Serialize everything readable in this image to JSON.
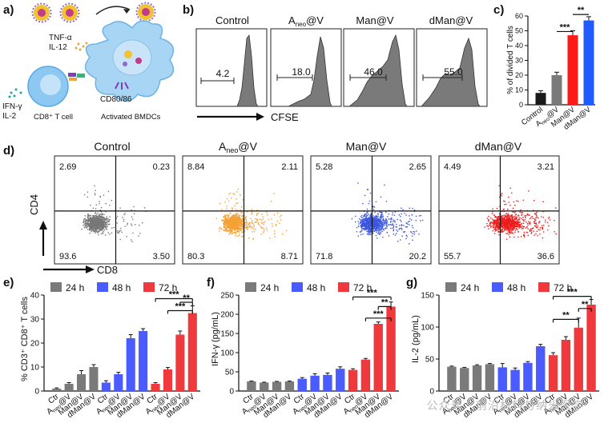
{
  "panels": {
    "a": {
      "label": "a)",
      "cytokines": [
        "TNF-α",
        "IL-12"
      ],
      "tcell_cytokines": [
        "IFN-γ",
        "IL-2"
      ],
      "cd80_label": "CD80/86",
      "tcell_label": "CD8⁺ T cell",
      "bmdc_label": "Activated BMDCs"
    },
    "b": {
      "label": "b)",
      "titles": [
        "Control",
        "A",
        "Man@V",
        "dMan@V"
      ],
      "title_sub": "neo",
      "title_suffix": "@V",
      "gate_values": [
        "4.2",
        "18.0",
        "46.0",
        "55.0"
      ],
      "xlabel": "CFSE"
    },
    "d": {
      "label": "d)",
      "titles": [
        "Control",
        "A",
        "Man@V",
        "dMan@V"
      ],
      "title_sub": "neo",
      "title_suffix": "@V",
      "quadrants": [
        [
          "2.69",
          "0.23",
          "93.6",
          "3.50"
        ],
        [
          "8.84",
          "2.11",
          "80.3",
          "8.71"
        ],
        [
          "5.28",
          "2.65",
          "71.8",
          "20.2"
        ],
        [
          "4.49",
          "3.21",
          "55.7",
          "36.6"
        ]
      ],
      "ylabel": "CD4",
      "xlabel": "CD8",
      "colors": [
        "#777777",
        "#f5a033",
        "#3a55e0",
        "#ee1c1c"
      ]
    },
    "watermark": "公众号 · 前沿材料与纳米医学"
  },
  "colors": {
    "gray": "#7a7a7a",
    "blue": "#4a5bff",
    "red": "#f0393d",
    "pure_red": "#ff1a1a",
    "pure_blue": "#1f5bff",
    "dark": "#1a1a1a"
  },
  "chart_data": [
    {
      "id": "c",
      "label": "c)",
      "type": "bar",
      "categories": [
        "Control",
        "Aneo@V",
        "Man@V",
        "dMan@V"
      ],
      "values": [
        8,
        20,
        47,
        57
      ],
      "errors": [
        1.5,
        2,
        3,
        2.5
      ],
      "ylabel": "% of divided T cells",
      "ylim": [
        0,
        60
      ],
      "yticks": [
        "0",
        "10",
        "20",
        "30",
        "40",
        "50",
        "60"
      ],
      "significance": [
        "***",
        "**"
      ]
    },
    {
      "id": "e",
      "label": "e)",
      "type": "bar",
      "ylabel": "% CD3⁺ CD8⁺ T cells",
      "ylim": [
        0,
        40
      ],
      "yticks": [
        "0",
        "10",
        "20",
        "30",
        "40"
      ],
      "legend": [
        "24 h",
        "48 h",
        "72 h"
      ],
      "categories": [
        "Ctr",
        "Aneo@V",
        "Man@V",
        "dMan@V"
      ],
      "series": [
        {
          "name": "24 h",
          "values": [
            1,
            3,
            7,
            10
          ],
          "errors": [
            0.3,
            0.5,
            1.5,
            1
          ]
        },
        {
          "name": "48 h",
          "values": [
            3.5,
            7,
            22,
            25
          ],
          "errors": [
            0.8,
            0.8,
            1.5,
            1
          ]
        },
        {
          "name": "72 h",
          "values": [
            3,
            9,
            23.5,
            32.5
          ],
          "errors": [
            0.5,
            0.8,
            1.5,
            3
          ]
        }
      ],
      "significance": [
        "***",
        "***",
        "**"
      ]
    },
    {
      "id": "f",
      "label": "f)",
      "type": "bar",
      "ylabel": "IFN-γ (pg/mL)",
      "ylim": [
        0,
        250
      ],
      "yticks": [
        "0",
        "50",
        "100",
        "150",
        "200",
        "250"
      ],
      "legend": [
        "24 h",
        "48 h",
        "72 h"
      ],
      "categories": [
        "Ctr",
        "Aneo@V",
        "Man@V",
        "dMan@V"
      ],
      "series": [
        {
          "name": "24 h",
          "values": [
            25,
            22,
            24,
            25
          ],
          "errors": [
            1,
            1,
            1,
            1
          ]
        },
        {
          "name": "48 h",
          "values": [
            32,
            40,
            42,
            58
          ],
          "errors": [
            3,
            5,
            5,
            5
          ]
        },
        {
          "name": "72 h",
          "values": [
            55,
            82,
            175,
            220
          ],
          "errors": [
            3,
            3,
            5,
            12
          ]
        }
      ],
      "significance": [
        "***",
        "***",
        "**"
      ]
    },
    {
      "id": "g",
      "label": "g)",
      "type": "bar",
      "ylabel": "IL-2 (pg/mL)",
      "ylim": [
        0,
        150
      ],
      "yticks": [
        "0",
        "50",
        "100",
        "150"
      ],
      "legend": [
        "24 h",
        "48 h",
        "72 h"
      ],
      "categories": [
        "Ctr",
        "Aneo@V",
        "Man@V",
        "dMan@V"
      ],
      "series": [
        {
          "name": "24 h",
          "values": [
            38,
            36,
            40,
            42
          ],
          "errors": [
            1,
            1,
            1,
            1
          ]
        },
        {
          "name": "48 h",
          "values": [
            37,
            33,
            44,
            70
          ],
          "errors": [
            6,
            3,
            2,
            3
          ]
        },
        {
          "name": "72 h",
          "values": [
            56,
            80,
            99,
            135
          ],
          "errors": [
            4,
            5,
            15,
            8
          ]
        }
      ],
      "significance": [
        "***",
        "**",
        "**"
      ]
    }
  ]
}
